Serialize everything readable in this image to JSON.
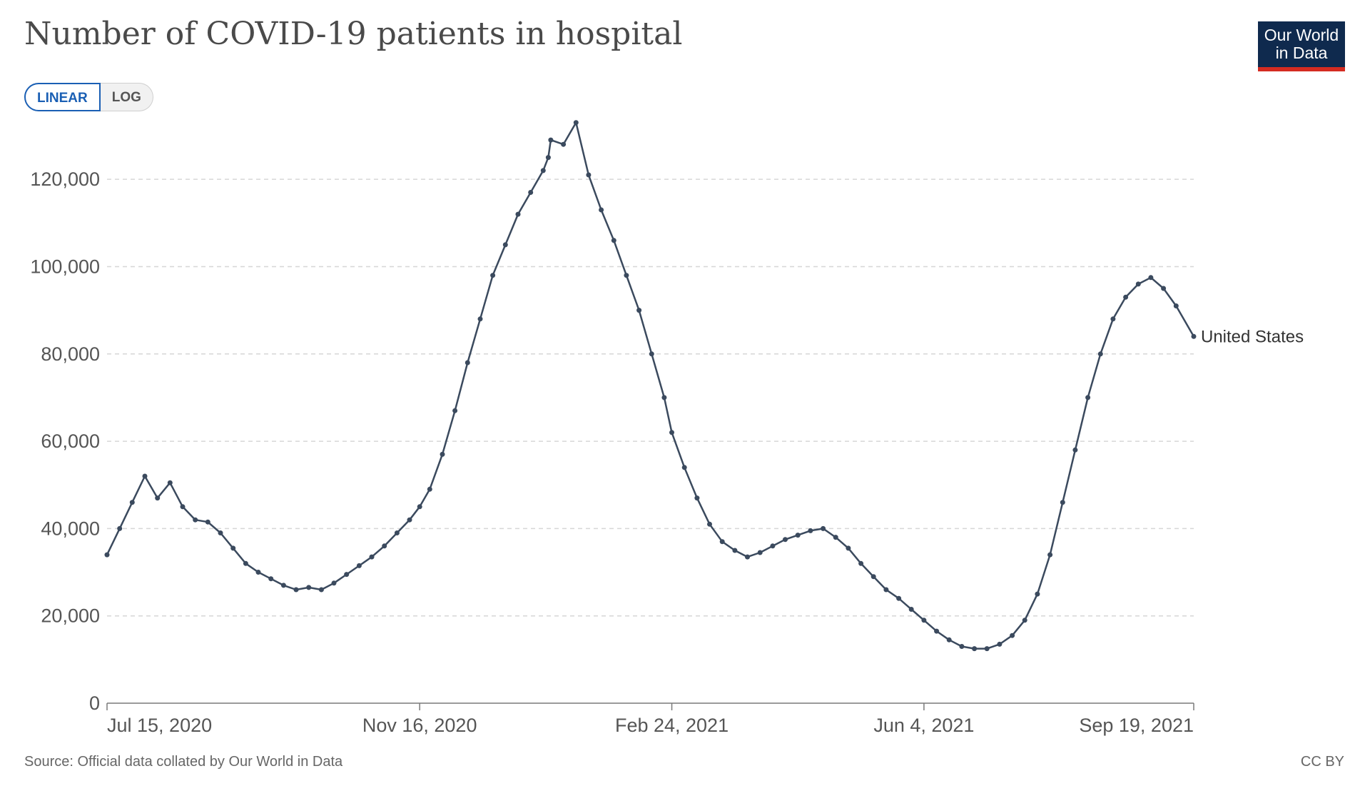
{
  "title": "Number of COVID-19 patients in hospital",
  "logo": {
    "line1": "Our World",
    "line2": "in Data"
  },
  "scale_toggle": {
    "linear_label": "LINEAR",
    "log_label": "LOG",
    "selected": "LINEAR"
  },
  "source": "Source: Official data collated by Our World in Data",
  "license": "CC BY",
  "colors": {
    "line": "#3b4a5e",
    "accent": "#1a5fb4",
    "logo_bg": "#0f2a4e",
    "logo_bar": "#d42b21"
  },
  "chart_data": {
    "type": "line",
    "title": "Number of COVID-19 patients in hospital",
    "xlabel": "",
    "ylabel": "",
    "ylim": [
      0,
      130000
    ],
    "y_ticks": [
      0,
      20000,
      40000,
      60000,
      80000,
      100000,
      120000
    ],
    "y_tick_labels": [
      "0",
      "20,000",
      "40,000",
      "60,000",
      "80,000",
      "100,000",
      "120,000"
    ],
    "x_range": [
      "2020-07-15",
      "2021-09-19"
    ],
    "x_ticks": [
      "2020-07-15",
      "2020-11-16",
      "2021-02-24",
      "2021-06-04",
      "2021-09-19"
    ],
    "x_tick_labels": [
      "Jul 15, 2020",
      "Nov 16, 2020",
      "Feb 24, 2021",
      "Jun 4, 2021",
      "Sep 19, 2021"
    ],
    "grid": "horizontal dashed",
    "series": [
      {
        "name": "United States",
        "x": [
          "2020-07-15",
          "2020-07-20",
          "2020-07-25",
          "2020-07-30",
          "2020-08-04",
          "2020-08-09",
          "2020-08-14",
          "2020-08-19",
          "2020-08-24",
          "2020-08-29",
          "2020-09-03",
          "2020-09-08",
          "2020-09-13",
          "2020-09-18",
          "2020-09-23",
          "2020-09-28",
          "2020-10-03",
          "2020-10-08",
          "2020-10-13",
          "2020-10-18",
          "2020-10-23",
          "2020-10-28",
          "2020-11-02",
          "2020-11-07",
          "2020-11-12",
          "2020-11-16",
          "2020-11-20",
          "2020-11-25",
          "2020-11-30",
          "2020-12-05",
          "2020-12-10",
          "2020-12-15",
          "2020-12-20",
          "2020-12-25",
          "2020-12-30",
          "2021-01-04",
          "2021-01-06",
          "2021-01-07",
          "2021-01-12",
          "2021-01-17",
          "2021-01-22",
          "2021-01-27",
          "2021-02-01",
          "2021-02-06",
          "2021-02-11",
          "2021-02-16",
          "2021-02-21",
          "2021-02-24",
          "2021-03-01",
          "2021-03-06",
          "2021-03-11",
          "2021-03-16",
          "2021-03-21",
          "2021-03-26",
          "2021-03-31",
          "2021-04-05",
          "2021-04-10",
          "2021-04-15",
          "2021-04-20",
          "2021-04-25",
          "2021-04-30",
          "2021-05-05",
          "2021-05-10",
          "2021-05-15",
          "2021-05-20",
          "2021-05-25",
          "2021-05-30",
          "2021-06-04",
          "2021-06-09",
          "2021-06-14",
          "2021-06-19",
          "2021-06-24",
          "2021-06-29",
          "2021-07-04",
          "2021-07-09",
          "2021-07-14",
          "2021-07-19",
          "2021-07-24",
          "2021-07-29",
          "2021-08-03",
          "2021-08-08",
          "2021-08-13",
          "2021-08-18",
          "2021-08-23",
          "2021-08-28",
          "2021-09-02",
          "2021-09-07",
          "2021-09-12",
          "2021-09-19"
        ],
        "values": [
          34000,
          40000,
          46000,
          52000,
          47000,
          50500,
          45000,
          42000,
          41500,
          39000,
          35500,
          32000,
          30000,
          28500,
          27000,
          26000,
          26500,
          26000,
          27500,
          29500,
          31500,
          33500,
          36000,
          39000,
          42000,
          45000,
          49000,
          57000,
          67000,
          78000,
          88000,
          98000,
          105000,
          112000,
          117000,
          122000,
          125000,
          129000,
          128000,
          133000,
          121000,
          113000,
          106000,
          98000,
          90000,
          80000,
          70000,
          62000,
          54000,
          47000,
          41000,
          37000,
          35000,
          33500,
          34500,
          36000,
          37500,
          38500,
          39500,
          40000,
          38000,
          35500,
          32000,
          29000,
          26000,
          24000,
          21500,
          19000,
          16500,
          14500,
          13000,
          12500,
          12500,
          13500,
          15500,
          19000,
          25000,
          34000,
          46000,
          58000,
          70000,
          80000,
          88000,
          93000,
          96000,
          97500,
          95000,
          91000,
          84000
        ]
      }
    ]
  }
}
